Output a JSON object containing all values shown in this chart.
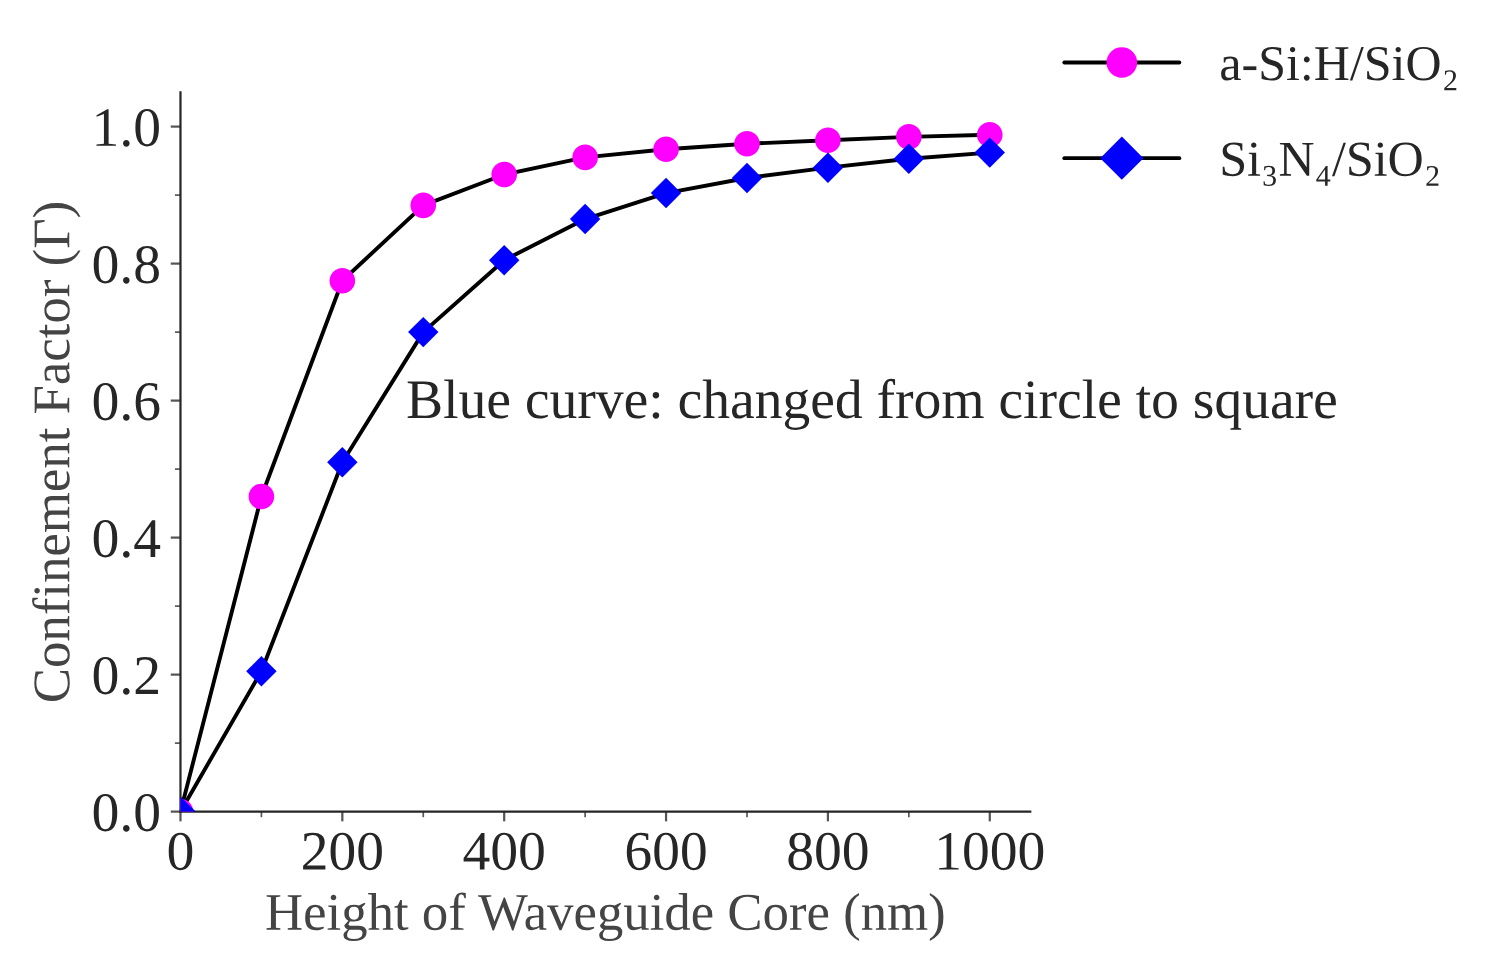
{
  "chart_data": {
    "type": "line",
    "xlabel": "Height of Waveguide Core (nm)",
    "ylabel": "Confinement Factor (Γ)",
    "x": [
      0,
      100,
      200,
      300,
      400,
      500,
      600,
      700,
      800,
      900,
      1000
    ],
    "series": [
      {
        "name": "a-Si:H/SiO₂",
        "color": "#ff00ff",
        "marker": "circle",
        "values": [
          0,
          0.46,
          0.775,
          0.885,
          0.93,
          0.955,
          0.967,
          0.975,
          0.98,
          0.985,
          0.988
        ]
      },
      {
        "name": "Si₃N₄/SiO₂",
        "color": "#0000ff",
        "marker": "diamond",
        "values": [
          0,
          0.205,
          0.51,
          0.7,
          0.805,
          0.865,
          0.903,
          0.925,
          0.94,
          0.953,
          0.962
        ]
      }
    ],
    "xlim": [
      0,
      1050
    ],
    "xticks": [
      0,
      200,
      400,
      600,
      800,
      1000
    ],
    "ylim": [
      0,
      1.05
    ],
    "yticks": [
      {
        "value": 0,
        "label": "0.0"
      },
      0.2,
      0.4,
      0.6,
      0.8,
      {
        "value": 1,
        "label": "1.0"
      }
    ],
    "annotations": [
      "Blue curve: changed from circle to square"
    ],
    "legend": "top right",
    "grid": false,
    "line_style": "solid"
  }
}
